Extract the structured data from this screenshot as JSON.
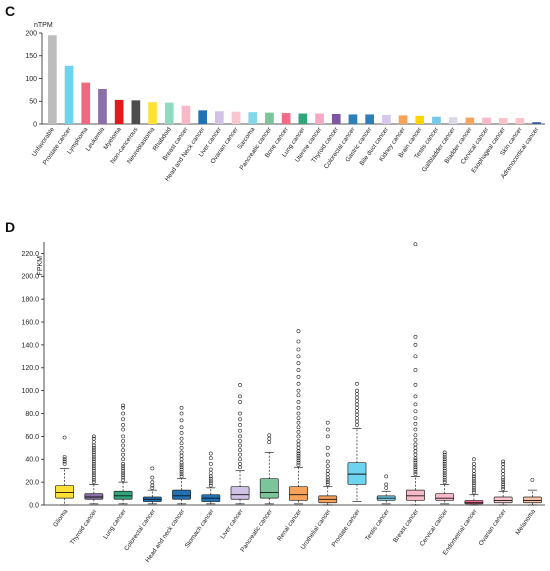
{
  "chart_data": [
    {
      "panel": "C",
      "type": "bar",
      "ylabel": "nTPM",
      "ylim": [
        0,
        200
      ],
      "yticks": [
        "0",
        "50",
        "100",
        "150",
        "200"
      ],
      "categories": [
        "Unfavorable",
        "Prostate cancer",
        "Lymphoma",
        "Leukemia",
        "Myeloma",
        "Non-cancerous",
        "Neuroblastoma",
        "Rhabdoid",
        "Breast cancer",
        "Head and Neck cancer",
        "Liver cancer",
        "Ovarian cancer",
        "Sarcoma",
        "Pancreatic cancer",
        "Bone cancer",
        "Lung cancer",
        "Uterine cancer",
        "Thyroid cancer",
        "Colorectal cancer",
        "Gastric cancer",
        "Bile duct cancer",
        "Kidney cancer",
        "Brain cancer",
        "Testis cancer",
        "Gallbladder cancer",
        "Bladder cancer",
        "Cervical cancer",
        "Esophageal cancer",
        "Skin cancer",
        "Adrenocortical cancer"
      ],
      "values": [
        195,
        128,
        91,
        77,
        53,
        52,
        48,
        47,
        40,
        30,
        28,
        27,
        26,
        25,
        24,
        23,
        23,
        22,
        21,
        21,
        20,
        19,
        18,
        16,
        15,
        14,
        14,
        13,
        13,
        4
      ],
      "colors": [
        "#bdbdbd",
        "#6dd3ef",
        "#f0687d",
        "#8b6fa8",
        "#e31a1c",
        "#4d4d4d",
        "#ffe135",
        "#8fdbc2",
        "#f7b8c8",
        "#2171b5",
        "#cfc2e6",
        "#f9c6cf",
        "#83d9ea",
        "#7cc49a",
        "#f26b88",
        "#2ea57a",
        "#f5a9c8",
        "#7d58a2",
        "#2c7fb8",
        "#2c7fb8",
        "#d4c8ec",
        "#f7a35c",
        "#ffd400",
        "#74c9e8",
        "#d9d9e8",
        "#f7a35c",
        "#f7b8c8",
        "#f7c2c8",
        "#f7c2c8",
        "#3d5aa8"
      ]
    },
    {
      "panel": "D",
      "type": "box",
      "ylabel": "FPKM",
      "ylim": [
        0,
        230
      ],
      "yticks": [
        "0.0",
        "20.0",
        "40.0",
        "60.0",
        "80.0",
        "100.0",
        "120.0",
        "140.0",
        "160.0",
        "180.0",
        "200.0",
        "220.0"
      ],
      "categories": [
        "Glioma",
        "Thyroid cancer",
        "Lung cancer",
        "Colorectal cancer",
        "Head and neck cancer",
        "Stomach cancer",
        "Liver cancer",
        "Pancreatic cancer",
        "Renal cancer",
        "Urothelial cancer",
        "Prostate cancer",
        "Testis cancer",
        "Breast cancer",
        "Cervical cancer",
        "Endometrial cancer",
        "Ovarian cancer",
        "Melanoma"
      ],
      "colors": [
        "#ffe135",
        "#8b6fa8",
        "#2ea57a",
        "#2171b5",
        "#2171b5",
        "#2171b5",
        "#cfc2e6",
        "#7cc49a",
        "#f7a35c",
        "#f7a35c",
        "#6dd3ef",
        "#74c9e8",
        "#f7b8c8",
        "#f7b8c8",
        "#f26b88",
        "#f9c6cf",
        "#f7c2a8"
      ],
      "boxes": [
        {
          "whisker_low": 0,
          "q1": 6,
          "median": 11,
          "q3": 17,
          "whisker_high": 32,
          "outliers": [
            36,
            38,
            40,
            42,
            59
          ]
        },
        {
          "whisker_low": 1,
          "q1": 5,
          "median": 7,
          "q3": 10,
          "whisker_high": 18,
          "outliers": [
            20,
            22,
            24,
            26,
            28,
            30,
            32,
            34,
            36,
            38,
            40,
            42,
            44,
            46,
            48,
            50,
            52,
            55,
            58,
            60
          ]
        },
        {
          "whisker_low": 1,
          "q1": 5,
          "median": 8,
          "q3": 12,
          "whisker_high": 20,
          "outliers": [
            22,
            24,
            26,
            28,
            30,
            32,
            34,
            36,
            40,
            44,
            48,
            52,
            56,
            60,
            66,
            70,
            75,
            80,
            85,
            87
          ]
        },
        {
          "whisker_low": 1,
          "q1": 3,
          "median": 5,
          "q3": 7,
          "whisker_high": 13,
          "outliers": [
            15,
            17,
            20,
            24,
            32
          ]
        },
        {
          "whisker_low": 1,
          "q1": 5,
          "median": 8,
          "q3": 13,
          "whisker_high": 23,
          "outliers": [
            25,
            27,
            29,
            31,
            33,
            35,
            37,
            40,
            43,
            46,
            50,
            54,
            58,
            63,
            68,
            74,
            80,
            85
          ]
        },
        {
          "whisker_low": 1,
          "q1": 3,
          "median": 6,
          "q3": 9,
          "whisker_high": 15,
          "outliers": [
            17,
            19,
            21,
            23,
            25,
            28,
            31,
            36,
            41,
            45
          ]
        },
        {
          "whisker_low": 1,
          "q1": 5,
          "median": 9,
          "q3": 16,
          "whisker_high": 30,
          "outliers": [
            33,
            36,
            40,
            44,
            48,
            52,
            56,
            60,
            65,
            70,
            75,
            80,
            90,
            95,
            105
          ]
        },
        {
          "whisker_low": 1,
          "q1": 6,
          "median": 11,
          "q3": 23,
          "whisker_high": 46,
          "outliers": [
            55,
            58,
            61
          ]
        },
        {
          "whisker_low": 1,
          "q1": 4,
          "median": 9,
          "q3": 16,
          "whisker_high": 33,
          "outliers": [
            35,
            37,
            39,
            41,
            43,
            45,
            47,
            50,
            53,
            56,
            60,
            64,
            68,
            72,
            76,
            80,
            85,
            90,
            96,
            100,
            106,
            112,
            118,
            124,
            130,
            136,
            143,
            152
          ]
        },
        {
          "whisker_low": 0,
          "q1": 2,
          "median": 5,
          "q3": 8,
          "whisker_high": 16,
          "outliers": [
            18,
            20,
            22,
            24,
            27,
            30,
            34,
            38,
            44,
            50,
            60,
            66,
            72
          ]
        },
        {
          "whisker_low": 3,
          "q1": 18,
          "median": 27,
          "q3": 37,
          "whisker_high": 67,
          "outliers": [
            70,
            73,
            76,
            79,
            82,
            85,
            88,
            91,
            94,
            97,
            100,
            106
          ]
        },
        {
          "whisker_low": 1,
          "q1": 4,
          "median": 6,
          "q3": 8,
          "whisker_high": 12,
          "outliers": [
            15,
            18,
            25
          ]
        },
        {
          "whisker_low": 0,
          "q1": 4,
          "median": 8,
          "q3": 13,
          "whisker_high": 25,
          "outliers": [
            27,
            29,
            31,
            33,
            35,
            37,
            39,
            41,
            44,
            47,
            50,
            53,
            57,
            61,
            66,
            71,
            76,
            82,
            88,
            95,
            105,
            118,
            130,
            140,
            147,
            228
          ]
        },
        {
          "whisker_low": 1,
          "q1": 4,
          "median": 6,
          "q3": 10,
          "whisker_high": 18,
          "outliers": [
            20,
            22,
            24,
            26,
            28,
            30,
            32,
            34,
            36,
            38,
            40,
            42,
            44,
            46
          ]
        },
        {
          "whisker_low": 0,
          "q1": 1,
          "median": 2,
          "q3": 4,
          "whisker_high": 9,
          "outliers": [
            11,
            13,
            15,
            17,
            19,
            21,
            23,
            25,
            27,
            30,
            33,
            36,
            40
          ]
        },
        {
          "whisker_low": 0,
          "q1": 2,
          "median": 4,
          "q3": 7,
          "whisker_high": 12,
          "outliers": [
            14,
            16,
            18,
            20,
            22,
            24,
            27,
            30,
            33,
            36,
            38
          ]
        },
        {
          "whisker_low": 0,
          "q1": 2,
          "median": 4,
          "q3": 7,
          "whisker_high": 13,
          "outliers": [
            22
          ]
        }
      ]
    }
  ],
  "panels": {
    "c_label": "C",
    "d_label": "D"
  }
}
